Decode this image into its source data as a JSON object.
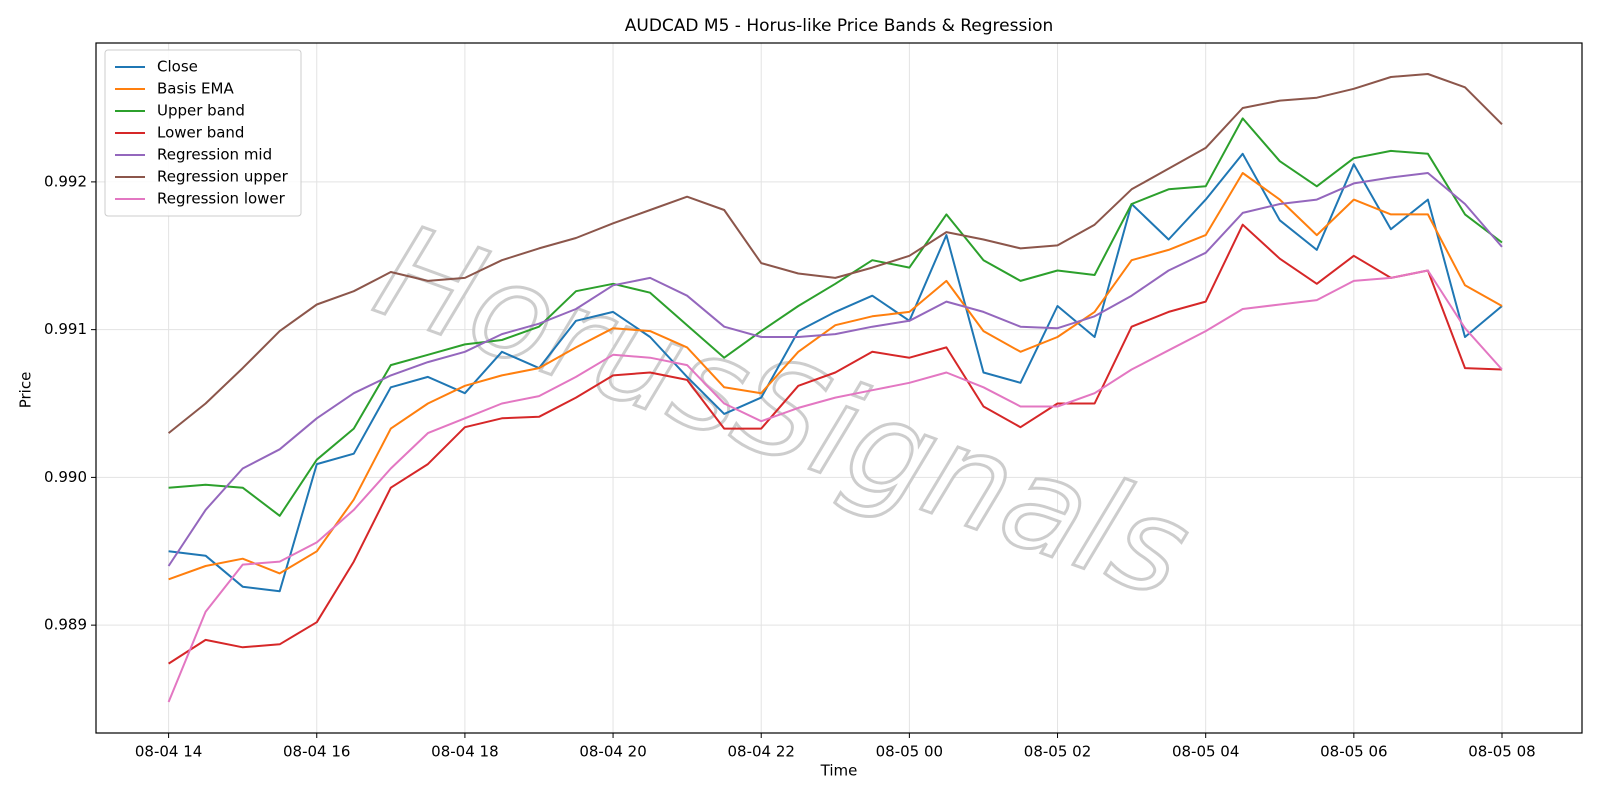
{
  "chart_data": {
    "type": "line",
    "title": "AUDCAD M5 - Horus-like Price Bands & Regression",
    "x_label": "Time",
    "y_label": "Price",
    "watermark": "HorusSignals",
    "x": [
      14,
      14.5,
      15,
      15.5,
      16,
      16.5,
      17,
      17.5,
      18,
      18.5,
      19,
      19.5,
      20,
      20.5,
      21,
      21.5,
      22,
      22.5,
      23,
      23.5,
      24,
      24.5,
      25,
      25.5,
      26,
      26.5,
      27,
      27.5,
      28,
      28.5,
      29,
      29.5,
      30,
      30.5,
      31,
      31.5,
      32
    ],
    "xlim": [
      13.02,
      33.08
    ],
    "xticks": [
      {
        "value": 14,
        "label": "08-04 14"
      },
      {
        "value": 16,
        "label": "08-04 16"
      },
      {
        "value": 18,
        "label": "08-04 18"
      },
      {
        "value": 20,
        "label": "08-04 20"
      },
      {
        "value": 22,
        "label": "08-04 22"
      },
      {
        "value": 24,
        "label": "08-05 00"
      },
      {
        "value": 26,
        "label": "08-05 02"
      },
      {
        "value": 28,
        "label": "08-05 04"
      },
      {
        "value": 30,
        "label": "08-05 06"
      },
      {
        "value": 32,
        "label": "08-05 08"
      }
    ],
    "ylim": [
      0.98827,
      0.99294
    ],
    "yticks": [
      0.989,
      {
        "value": 0.99,
        "label": "0.990"
      },
      0.991,
      0.992
    ],
    "grid": true,
    "legend": "upper left",
    "series": [
      {
        "name": "Close",
        "color": "#1f77b4",
        "values": [
          0.9895,
          0.98947,
          0.98926,
          0.98923,
          0.99009,
          0.99016,
          0.99061,
          0.99068,
          0.99057,
          0.99085,
          0.99074,
          0.99106,
          0.99112,
          0.99095,
          0.99068,
          0.99043,
          0.99054,
          0.99099,
          0.99112,
          0.99123,
          0.99106,
          0.99164,
          0.99071,
          0.99064,
          0.99116,
          0.99095,
          0.99185,
          0.99161,
          0.99188,
          0.99219,
          0.99174,
          0.99154,
          0.99212,
          0.99168,
          0.99188,
          0.99095,
          0.99116
        ]
      },
      {
        "name": "Basis EMA",
        "color": "#ff7f0e",
        "values": [
          0.98931,
          0.9894,
          0.98945,
          0.98935,
          0.9895,
          0.98985,
          0.99033,
          0.9905,
          0.99062,
          0.99069,
          0.99074,
          0.99088,
          0.99101,
          0.99099,
          0.99088,
          0.99061,
          0.99057,
          0.99085,
          0.99103,
          0.99109,
          0.99112,
          0.99133,
          0.99099,
          0.99085,
          0.99095,
          0.99112,
          0.99147,
          0.99154,
          0.99164,
          0.99206,
          0.99188,
          0.99164,
          0.99188,
          0.99178,
          0.99178,
          0.9913,
          0.99116
        ]
      },
      {
        "name": "Upper band",
        "color": "#2ca02c",
        "values": [
          0.98993,
          0.98995,
          0.98993,
          0.98974,
          0.99012,
          0.99033,
          0.99076,
          0.99083,
          0.9909,
          0.99093,
          0.99102,
          0.99126,
          0.99131,
          0.99125,
          0.99103,
          0.99081,
          0.99099,
          0.99116,
          0.99131,
          0.99147,
          0.99142,
          0.99178,
          0.99147,
          0.99133,
          0.9914,
          0.99137,
          0.99185,
          0.99195,
          0.99197,
          0.99243,
          0.99214,
          0.99197,
          0.99216,
          0.99221,
          0.99219,
          0.99178,
          0.99159
        ]
      },
      {
        "name": "Lower band",
        "color": "#d62728",
        "values": [
          0.98874,
          0.9889,
          0.98885,
          0.98887,
          0.98902,
          0.98943,
          0.98993,
          0.99009,
          0.99034,
          0.9904,
          0.99041,
          0.99054,
          0.99069,
          0.99071,
          0.99066,
          0.99033,
          0.99033,
          0.99062,
          0.99071,
          0.99085,
          0.99081,
          0.99088,
          0.99048,
          0.99034,
          0.9905,
          0.9905,
          0.99102,
          0.99112,
          0.99119,
          0.99171,
          0.99148,
          0.99131,
          0.9915,
          0.99135,
          0.9914,
          0.99074,
          0.99073
        ]
      },
      {
        "name": "Regression mid",
        "color": "#9467bd",
        "values": [
          0.9894,
          0.98978,
          0.99006,
          0.99019,
          0.9904,
          0.99057,
          0.99069,
          0.99078,
          0.99085,
          0.99097,
          0.99104,
          0.99114,
          0.9913,
          0.99135,
          0.99123,
          0.99102,
          0.99095,
          0.99095,
          0.99097,
          0.99102,
          0.99106,
          0.99119,
          0.99112,
          0.99102,
          0.99101,
          0.99109,
          0.99123,
          0.9914,
          0.99152,
          0.99179,
          0.99185,
          0.99188,
          0.99199,
          0.99203,
          0.99206,
          0.99185,
          0.99156
        ]
      },
      {
        "name": "Regression upper",
        "color": "#8c564b",
        "values": [
          0.9903,
          0.9905,
          0.99074,
          0.99099,
          0.99117,
          0.99126,
          0.99139,
          0.99133,
          0.99135,
          0.99147,
          0.99155,
          0.99162,
          0.99172,
          0.99181,
          0.9919,
          0.99181,
          0.99145,
          0.99138,
          0.99135,
          0.99142,
          0.9915,
          0.99166,
          0.99161,
          0.99155,
          0.99157,
          0.99171,
          0.99195,
          0.99209,
          0.99223,
          0.9925,
          0.99255,
          0.99257,
          0.99263,
          0.99271,
          0.99273,
          0.99264,
          0.99239
        ]
      },
      {
        "name": "Regression lower",
        "color": "#e377c2",
        "values": [
          0.98848,
          0.98909,
          0.98941,
          0.98943,
          0.98956,
          0.98978,
          0.99006,
          0.9903,
          0.9904,
          0.9905,
          0.99055,
          0.99068,
          0.99083,
          0.99081,
          0.99076,
          0.9905,
          0.99038,
          0.99047,
          0.99054,
          0.99059,
          0.99064,
          0.99071,
          0.99061,
          0.99048,
          0.99048,
          0.99057,
          0.99073,
          0.99086,
          0.99099,
          0.99114,
          0.99117,
          0.9912,
          0.99133,
          0.99135,
          0.9914,
          0.99101,
          0.99073
        ]
      }
    ]
  }
}
